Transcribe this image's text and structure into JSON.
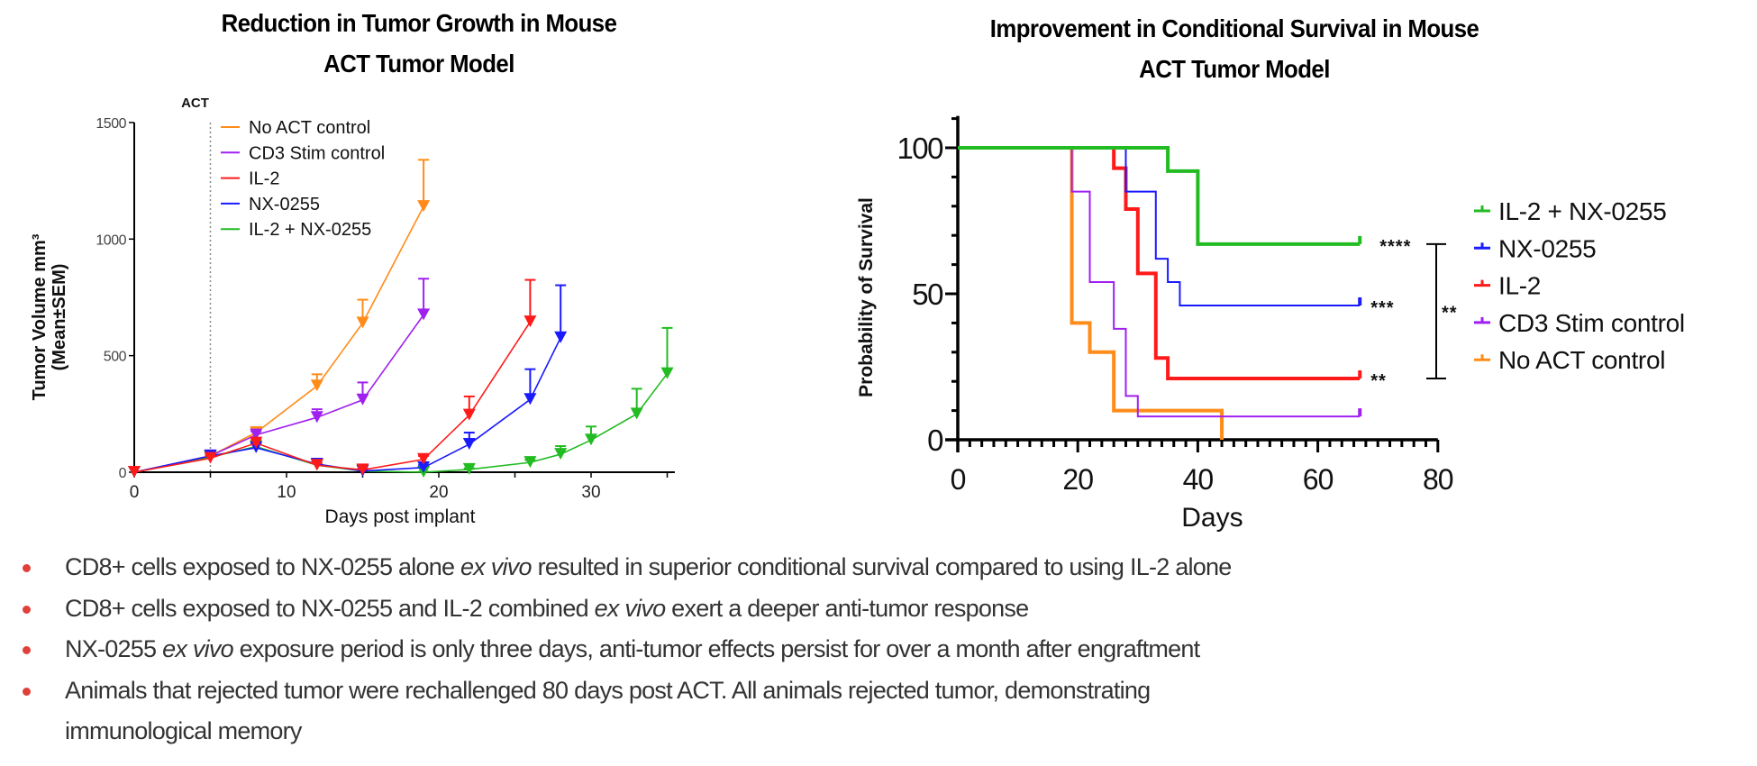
{
  "bullets": [
    {
      "parts": [
        {
          "t": "CD8+ cells exposed to NX-0255 alone "
        },
        {
          "t": "ex vivo",
          "i": true
        },
        {
          "t": " resulted in superior conditional survival compared to using IL-2 alone"
        }
      ]
    },
    {
      "parts": [
        {
          "t": "CD8+ cells exposed to NX-0255 and IL-2 combined "
        },
        {
          "t": "ex vivo",
          "i": true
        },
        {
          "t": " exert a deeper anti-tumor response"
        }
      ]
    },
    {
      "parts": [
        {
          "t": "NX-0255 "
        },
        {
          "t": "ex vivo",
          "i": true
        },
        {
          "t": " exposure period is only three days, anti-tumor effects persist for over a month after engraftment"
        }
      ]
    },
    {
      "parts": [
        {
          "t": "Animals that rejected tumor were rechallenged 80 days post ACT.  All animals rejected tumor, demonstrating"
        }
      ]
    },
    {
      "parts": [
        {
          "t": "immunological memory"
        }
      ],
      "continuation": true
    }
  ],
  "colors": {
    "bullet": "#e0403a",
    "text": "#333333"
  },
  "chart_data": [
    {
      "type": "line",
      "title": "Reduction in Tumor Growth in Mouse ACT Tumor Model",
      "title_lines": [
        "Reduction in Tumor Growth in Mouse",
        "ACT Tumor Model"
      ],
      "xlabel": "Days post implant",
      "ylabel_lines": [
        "Tumor Volume mm³",
        "(Mean±SEM)"
      ],
      "ylabel": "Tumor Volume mm3 (Mean±SEM)",
      "xlim": [
        0,
        35.5
      ],
      "ylim": [
        0,
        1500
      ],
      "xticks": [
        0,
        10,
        20,
        30
      ],
      "yticks": [
        0,
        500,
        1000,
        1500
      ],
      "grid": false,
      "legend_position": "top-left",
      "marker": "triangle-down",
      "error_bars": "upper SEM",
      "annotation": {
        "label": "ACT",
        "x": 5,
        "style": "dotted vertical line"
      },
      "series": [
        {
          "name": "No ACT control",
          "color": "#ff8c1a",
          "x": [
            0,
            5,
            8,
            12,
            15,
            19
          ],
          "y": [
            0,
            70,
            170,
            370,
            640,
            1140
          ],
          "err": [
            0,
            10,
            20,
            50,
            100,
            200
          ]
        },
        {
          "name": "CD3 Stim control",
          "color": "#a020f0",
          "x": [
            0,
            5,
            8,
            12,
            15,
            19
          ],
          "y": [
            0,
            70,
            160,
            235,
            310,
            675
          ],
          "err": [
            0,
            10,
            15,
            35,
            75,
            155
          ]
        },
        {
          "name": "IL-2",
          "color": "#ff1a1a",
          "x": [
            0,
            5,
            8,
            12,
            15,
            19,
            22,
            26
          ],
          "y": [
            0,
            60,
            125,
            30,
            10,
            55,
            245,
            645
          ],
          "err": [
            0,
            10,
            15,
            10,
            5,
            15,
            80,
            180
          ]
        },
        {
          "name": "NX-0255",
          "color": "#1a1aff",
          "x": [
            0,
            5,
            8,
            12,
            15,
            19,
            22,
            26,
            28
          ],
          "y": [
            0,
            70,
            105,
            35,
            5,
            20,
            120,
            312,
            577
          ],
          "err": [
            0,
            10,
            15,
            15,
            5,
            10,
            50,
            130,
            225
          ]
        },
        {
          "name": "IL-2 + NX-0255",
          "color": "#22bb22",
          "x": [
            0,
            5,
            8,
            12,
            15,
            19,
            22,
            26,
            28,
            30,
            33,
            35
          ],
          "y": [
            0,
            65,
            110,
            30,
            5,
            0,
            12,
            42,
            77,
            138,
            250,
            423
          ],
          "err": [
            0,
            8,
            12,
            8,
            3,
            2,
            5,
            10,
            35,
            58,
            108,
            196
          ]
        }
      ]
    },
    {
      "type": "line",
      "subtype": "kaplan-meier step",
      "title": "Improvement in Conditional Survival in Mouse ACT Tumor Model",
      "title_lines": [
        "Improvement in Conditional Survival in Mouse",
        "ACT Tumor Model"
      ],
      "xlabel": "Days",
      "ylabel": "Probability of Survival",
      "xlim": [
        0,
        80
      ],
      "ylim": [
        0,
        110
      ],
      "xticks": [
        0,
        20,
        40,
        60,
        80
      ],
      "yticks": [
        0,
        50,
        100
      ],
      "x_minor_step": 2,
      "y_minor_step": 10,
      "grid": false,
      "legend_position": "right",
      "series": [
        {
          "name": "IL-2 + NX-0255",
          "color": "#22bb22",
          "thick": true,
          "censored_at": 67,
          "significance": "****",
          "steps": [
            [
              0,
              100
            ],
            [
              35,
              92
            ],
            [
              40,
              67
            ],
            [
              67,
              67
            ]
          ]
        },
        {
          "name": "NX-0255",
          "color": "#1a1aff",
          "thick": false,
          "censored_at": 67,
          "significance": "***",
          "steps": [
            [
              0,
              100
            ],
            [
              28,
              85
            ],
            [
              33,
              62
            ],
            [
              35,
              54
            ],
            [
              37,
              46
            ],
            [
              67,
              46
            ]
          ]
        },
        {
          "name": "IL-2",
          "color": "#ff1a1a",
          "thick": true,
          "censored_at": 67,
          "significance": "**",
          "steps": [
            [
              0,
              100
            ],
            [
              26,
              93
            ],
            [
              28,
              79
            ],
            [
              30,
              57
            ],
            [
              33,
              28
            ],
            [
              35,
              21
            ],
            [
              67,
              21
            ]
          ]
        },
        {
          "name": "CD3 Stim control",
          "color": "#a020f0",
          "thick": false,
          "censored_at": 67,
          "steps": [
            [
              0,
              100
            ],
            [
              19,
              85
            ],
            [
              22,
              54
            ],
            [
              26,
              38
            ],
            [
              28,
              15
            ],
            [
              30,
              8
            ],
            [
              67,
              8
            ]
          ]
        },
        {
          "name": "No ACT control",
          "color": "#ff8c1a",
          "thick": true,
          "steps": [
            [
              0,
              100
            ],
            [
              19,
              40
            ],
            [
              22,
              30
            ],
            [
              26,
              10
            ],
            [
              44,
              0
            ]
          ]
        }
      ],
      "bracket": {
        "from_series": "IL-2 + NX-0255",
        "to_series": "IL-2",
        "label": "**"
      }
    }
  ]
}
